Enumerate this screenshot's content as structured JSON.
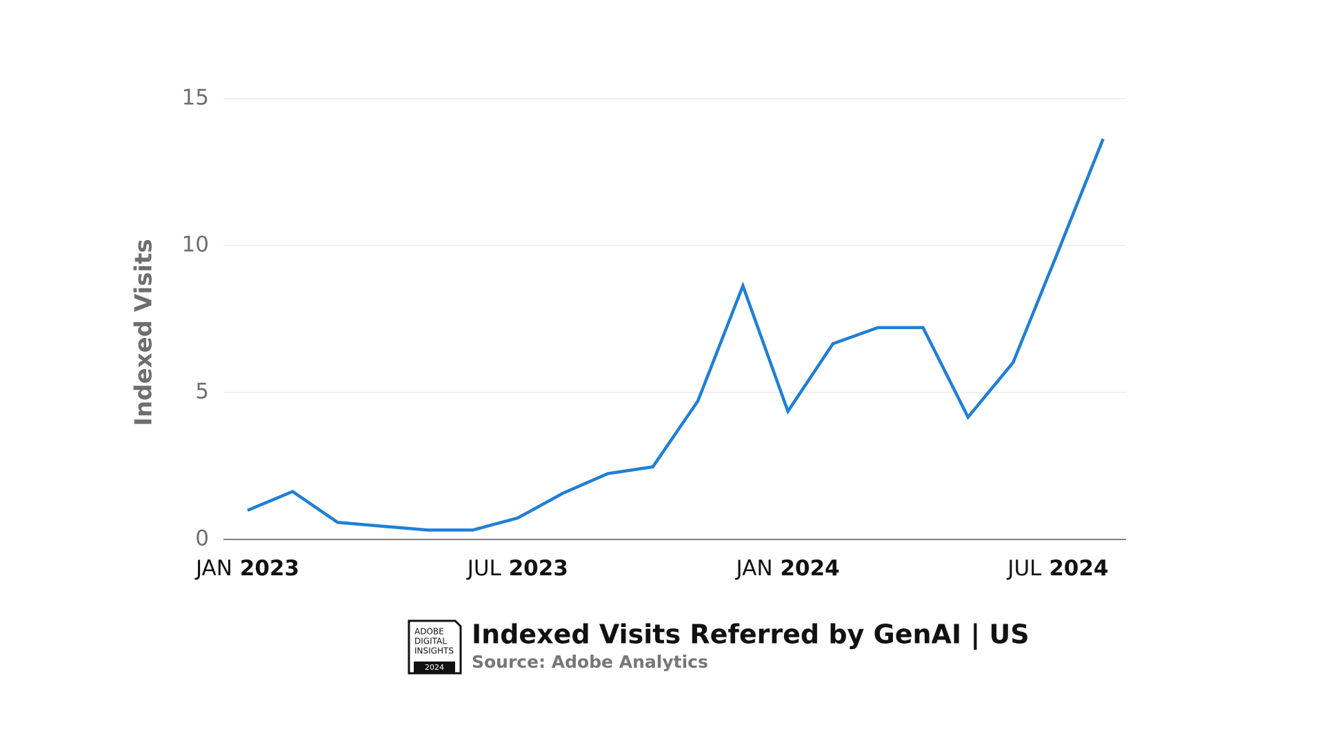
{
  "chart_data": {
    "type": "line",
    "title": "Indexed Visits Referred by GenAI | US",
    "subtitle": "Source: Adobe Analytics",
    "y_label": "Indexed Visits",
    "categories": [
      "JAN 2023",
      null,
      null,
      null,
      null,
      null,
      "JUL 2023",
      null,
      null,
      null,
      null,
      null,
      "JAN 2024",
      null,
      null,
      null,
      null,
      null,
      "JUL 2024",
      null
    ],
    "series": [
      {
        "name": "Indexed Visits",
        "color": "#1f7fd6",
        "values": [
          0.99,
          1.63,
          0.58,
          0.45,
          0.32,
          0.32,
          0.73,
          1.57,
          2.24,
          2.47,
          4.71,
          8.63,
          4.36,
          6.66,
          7.21,
          7.21,
          4.16,
          6.02,
          9.8,
          13.63
        ]
      }
    ],
    "ylim": [
      0,
      15
    ],
    "yticks": [
      0,
      5,
      10,
      15
    ],
    "grid": true
  },
  "logo": {
    "lines": [
      "ADOBE",
      "DIGITAL",
      "INSIGHTS"
    ],
    "year": "2024"
  }
}
